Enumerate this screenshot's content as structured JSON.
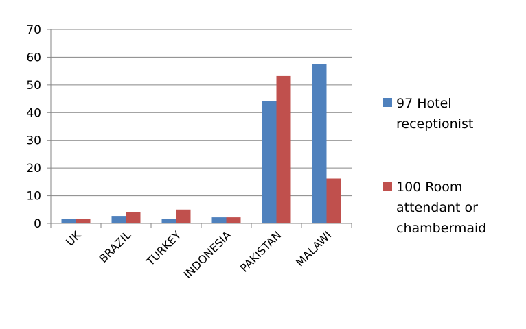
{
  "chart_data": {
    "type": "bar",
    "categories": [
      "UK",
      "BRAZIL",
      "TURKEY",
      "INDONESIA",
      "PAKISTAN",
      "MALAWI"
    ],
    "series": [
      {
        "name": "97 Hotel receptionist",
        "values": [
          1.5,
          2.7,
          1.5,
          2.2,
          44.2,
          57.5
        ],
        "color": "#4f81bd"
      },
      {
        "name": "100 Room attendant or chambermaid",
        "values": [
          1.5,
          4.1,
          5.0,
          2.2,
          53.2,
          16.2
        ],
        "color": "#c0504d"
      }
    ],
    "ylim": [
      0,
      70
    ],
    "yticks": [
      "0",
      "10",
      "20",
      "30",
      "40",
      "50",
      "60",
      "70"
    ],
    "title": "",
    "xlabel": "",
    "ylabel": "",
    "grid": true,
    "legend": {
      "position": "right",
      "entries": [
        {
          "lines": [
            "97 Hotel",
            "receptionist"
          ]
        },
        {
          "lines": [
            "100 Room",
            "attendant or",
            "chambermaid"
          ]
        }
      ]
    }
  }
}
